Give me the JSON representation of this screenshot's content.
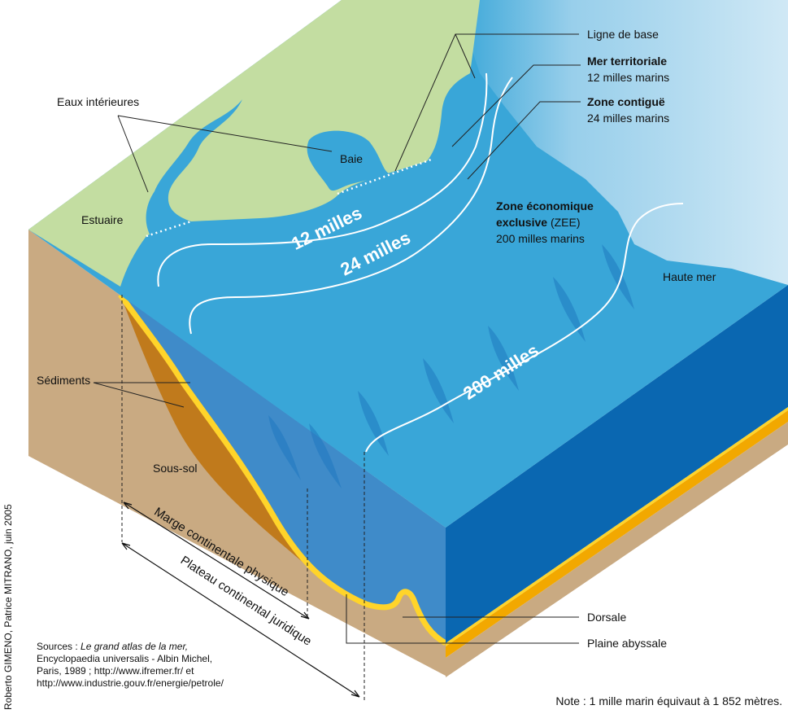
{
  "labels": {
    "baseline": "Ligne de base",
    "inland": "Eaux intérieures",
    "bay": "Baie",
    "estuary": "Estuaire",
    "high_sea": "Haute mer",
    "sediments": "Sédiments",
    "subsoil": "Sous-sol",
    "ridge": "Dorsale",
    "abyssal_plain": "Plaine abyssale"
  },
  "zones": [
    {
      "title": "Mer territoriale",
      "detail": "12 milles marins"
    },
    {
      "title": "Zone contiguë",
      "detail": "24 milles marins"
    },
    {
      "title": [
        "Zone économique",
        "exclusive"
      ],
      "suffix": "(ZEE)",
      "detail": "200 milles marins"
    }
  ],
  "limits": [
    "12 milles",
    "24 milles",
    "200 milles"
  ],
  "extents": [
    "Marge continentale physique",
    "Plateau continental juridique"
  ],
  "sources": {
    "prefix": "Sources :",
    "title": "Le grand atlas de la mer,",
    "lines": [
      "Encyclopaedia universalis - Albin Michel,",
      "Paris, 1989 ; http://www.ifremer.fr/ et",
      "http://www.industrie.gouv.fr/energie/petrole/"
    ]
  },
  "credit": "Roberto GIMENO, Patrice MITRANO, juin 2005",
  "note": "Note : 1 mille marin équivaut à 1 852 mètres."
}
